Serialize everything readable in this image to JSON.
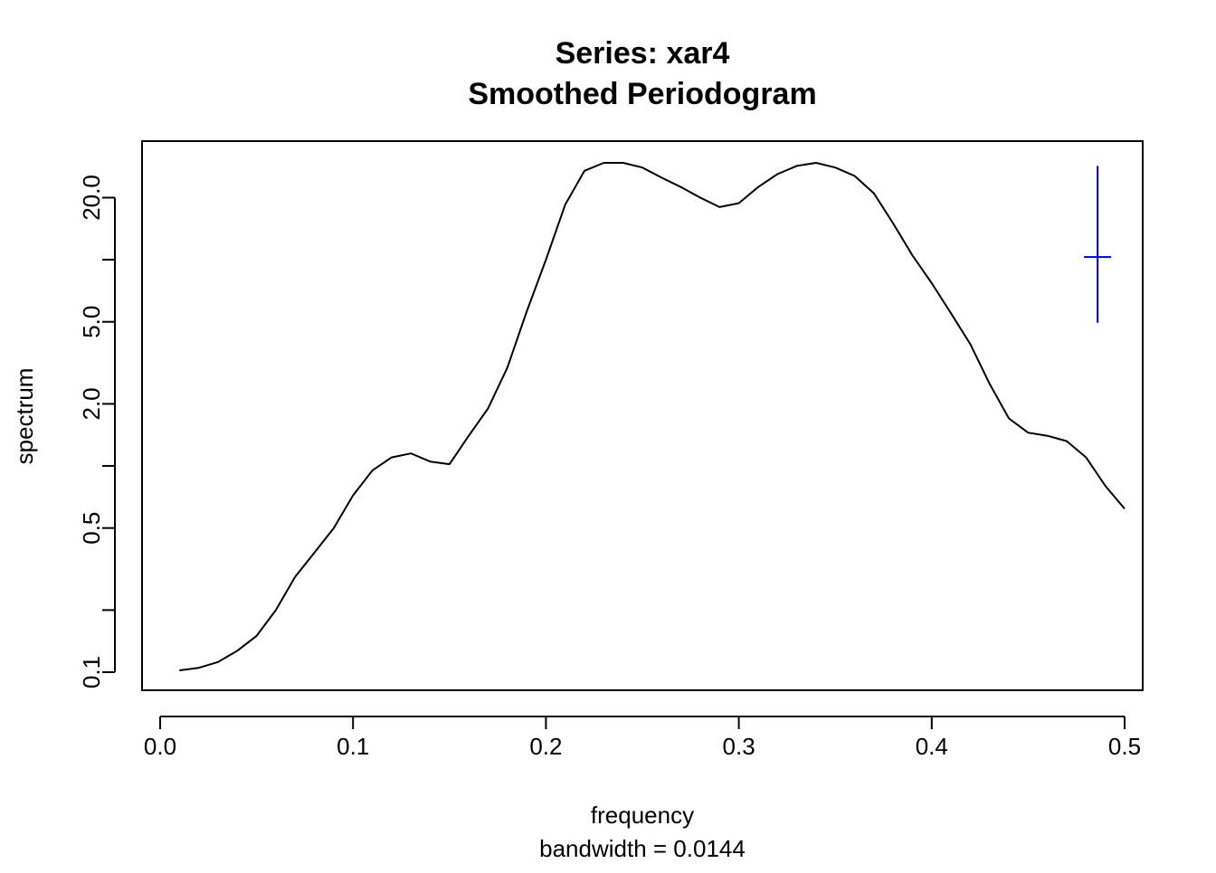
{
  "chart_data": {
    "type": "line",
    "title": "Series: xar4",
    "subtitle": "Smoothed Periodogram",
    "xlabel": "frequency",
    "xlabel_sub": "bandwidth = 0.0144",
    "ylabel": "spectrum",
    "y_scale": "log",
    "xlim": [
      0.0,
      0.5
    ],
    "ylim": [
      0.085,
      30
    ],
    "x_ticks": [
      0.0,
      0.1,
      0.2,
      0.3,
      0.4,
      0.5
    ],
    "x_tick_labels": [
      "0.0",
      "0.1",
      "0.2",
      "0.3",
      "0.4",
      "0.5"
    ],
    "y_ticks": [
      0.1,
      0.2,
      0.5,
      1,
      2,
      5,
      10,
      20
    ],
    "y_tick_labels": [
      "0.1",
      "",
      "0.5",
      "",
      "2.0",
      "5.0",
      "",
      "20.0"
    ],
    "series": [
      {
        "color": "#000000",
        "x": [
          0.01,
          0.02,
          0.03,
          0.04,
          0.05,
          0.06,
          0.07,
          0.08,
          0.09,
          0.1,
          0.11,
          0.12,
          0.13,
          0.14,
          0.15,
          0.16,
          0.17,
          0.18,
          0.19,
          0.2,
          0.21,
          0.22,
          0.23,
          0.24,
          0.25,
          0.26,
          0.27,
          0.28,
          0.29,
          0.3,
          0.31,
          0.32,
          0.33,
          0.34,
          0.35,
          0.36,
          0.37,
          0.38,
          0.39,
          0.4,
          0.41,
          0.42,
          0.43,
          0.44,
          0.45,
          0.46,
          0.47,
          0.48,
          0.49,
          0.5
        ],
        "y": [
          0.102,
          0.105,
          0.112,
          0.127,
          0.15,
          0.2,
          0.29,
          0.38,
          0.5,
          0.72,
          0.95,
          1.1,
          1.15,
          1.05,
          1.02,
          1.4,
          1.9,
          3.0,
          5.6,
          10.0,
          18.5,
          27.0,
          29.5,
          29.5,
          28.0,
          25.0,
          22.5,
          20.0,
          18.0,
          18.8,
          22.5,
          26.0,
          28.5,
          29.5,
          28.0,
          25.5,
          21.0,
          15.0,
          10.5,
          7.7,
          5.5,
          3.9,
          2.5,
          1.7,
          1.45,
          1.4,
          1.32,
          1.1,
          0.8,
          0.62
        ]
      }
    ],
    "confidence_bar": {
      "color": "#0000cd",
      "x": 0.486,
      "y_center": 10.3,
      "y_low": 4.95,
      "y_high": 28.5
    }
  }
}
